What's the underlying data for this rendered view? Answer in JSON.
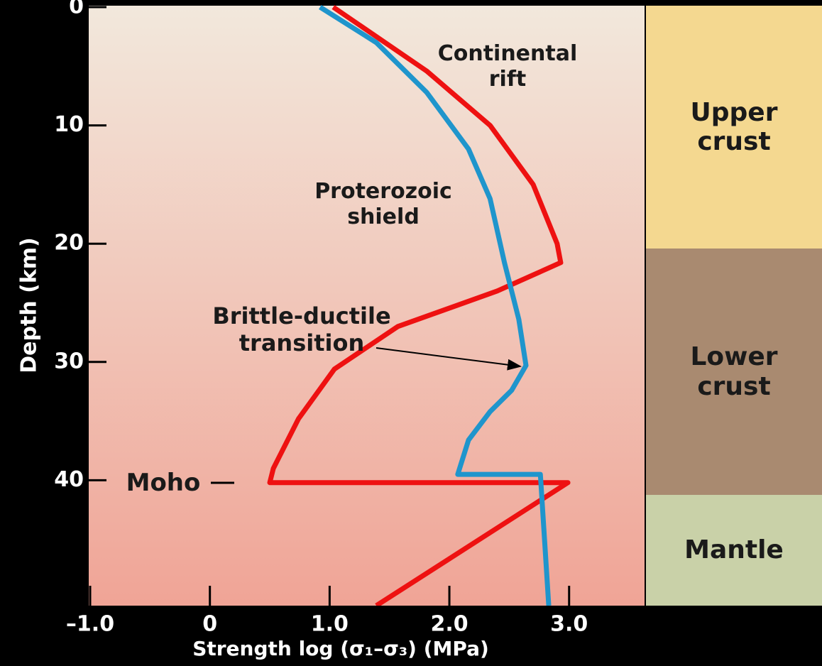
{
  "chart_data": {
    "type": "line",
    "x_label": "Strength log (σ₁–σ₃) (MPa)",
    "y_label": "Depth (km)",
    "xlim": [
      -1.0,
      3.63
    ],
    "xticks": [
      {
        "value": -1,
        "label": "–1.0"
      },
      0,
      {
        "value": 1,
        "label": "1.0"
      },
      {
        "value": 2,
        "label": "2.0"
      },
      {
        "value": 3,
        "label": "3.0"
      }
    ],
    "ylim": [
      0,
      50.6
    ],
    "yticks": [
      0,
      10,
      20,
      30,
      40
    ],
    "y_inverted": true,
    "series": [
      {
        "name": "Continental rift",
        "color": "#ee1111",
        "x": [
          1.03,
          1.81,
          2.34,
          2.7,
          2.9,
          2.93,
          2.4,
          1.57,
          1.04,
          0.74,
          0.53,
          0.5,
          2.99,
          1.39
        ],
        "values": [
          0,
          5.4,
          10,
          15,
          20,
          21.6,
          24,
          27,
          30.6,
          34.8,
          39,
          40.2,
          40.2,
          50.6
        ]
      },
      {
        "name": "Proterozoic shield",
        "color": "#1f95cc",
        "x": [
          0.92,
          1.39,
          1.81,
          2.16,
          2.34,
          2.46,
          2.58,
          2.64,
          2.52,
          2.34,
          2.16,
          2.07,
          2.76,
          2.83
        ],
        "values": [
          0,
          3,
          7.2,
          12,
          16.2,
          21.6,
          26.4,
          30.3,
          32.4,
          34.2,
          36.6,
          39.5,
          39.5,
          50.6
        ]
      }
    ],
    "annotations": [
      "Brittle-ductile transition",
      "Moho"
    ],
    "layers": [
      "Upper crust",
      "Lower crust",
      "Mantle"
    ]
  }
}
